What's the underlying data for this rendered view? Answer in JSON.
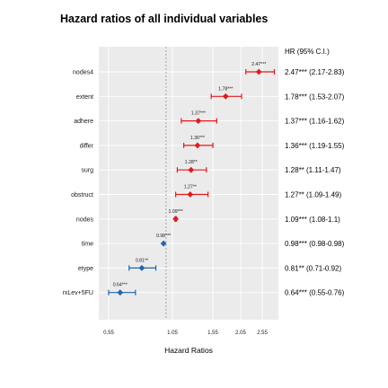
{
  "chart_data": {
    "type": "forest",
    "title": "Hazard ratios of all individual variables",
    "xlabel": "Hazard Ratios",
    "x_ticks": [
      "0.55",
      "1.05",
      "1.55",
      "2.05",
      "2.55"
    ],
    "x_tick_values": [
      0.55,
      1.05,
      1.55,
      2.05,
      2.55
    ],
    "xlim": [
      0.45,
      2.7
    ],
    "reference_line": 1.0,
    "table_header": "HR (95% C.I.)",
    "grid": true,
    "colors": {
      "risk": "#e31a1c",
      "protective": "#2166ac",
      "panel": "#ebebeb",
      "grid": "#ffffff"
    },
    "rows": [
      {
        "variable": "nodes4",
        "hr": 2.47,
        "lower": 2.17,
        "upper": 2.83,
        "label": "2.47***",
        "ci_text": "2.47*** (2.17-2.83)",
        "direction": "risk"
      },
      {
        "variable": "extent",
        "hr": 1.78,
        "lower": 1.53,
        "upper": 2.07,
        "label": "1.78***",
        "ci_text": "1.78*** (1.53-2.07)",
        "direction": "risk"
      },
      {
        "variable": "adhere",
        "hr": 1.37,
        "lower": 1.16,
        "upper": 1.62,
        "label": "1.37***",
        "ci_text": "1.37*** (1.16-1.62)",
        "direction": "risk"
      },
      {
        "variable": "differ",
        "hr": 1.36,
        "lower": 1.19,
        "upper": 1.55,
        "label": "1.36***",
        "ci_text": "1.36*** (1.19-1.55)",
        "direction": "risk"
      },
      {
        "variable": "surg",
        "hr": 1.28,
        "lower": 1.11,
        "upper": 1.47,
        "label": "1.28**",
        "ci_text": "1.28** (1.11-1.47)",
        "direction": "risk"
      },
      {
        "variable": "obstruct",
        "hr": 1.27,
        "lower": 1.09,
        "upper": 1.49,
        "label": "1.27**",
        "ci_text": "1.27** (1.09-1.49)",
        "direction": "risk"
      },
      {
        "variable": "nodes",
        "hr": 1.09,
        "lower": 1.08,
        "upper": 1.1,
        "label": "1.09***",
        "ci_text": "1.09*** (1.08-1.1)",
        "direction": "risk"
      },
      {
        "variable": "time",
        "hr": 0.98,
        "lower": 0.98,
        "upper": 0.98,
        "label": "0.98***",
        "ci_text": "0.98*** (0.98-0.98)",
        "direction": "protective"
      },
      {
        "variable": "etype",
        "hr": 0.81,
        "lower": 0.71,
        "upper": 0.92,
        "label": "0.81**",
        "ci_text": "0.81** (0.71-0.92)",
        "direction": "protective"
      },
      {
        "variable": "rxLev+5FU",
        "hr": 0.64,
        "lower": 0.55,
        "upper": 0.76,
        "label": "0.64***",
        "ci_text": "0.64*** (0.55-0.76)",
        "direction": "protective"
      }
    ]
  }
}
